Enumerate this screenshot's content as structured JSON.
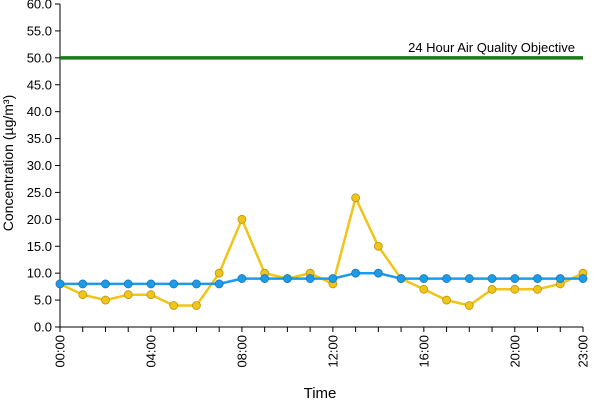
{
  "chart_data": {
    "type": "line",
    "title": "",
    "xlabel": "Time",
    "ylabel": "Concentration (µg/m³)",
    "ylim": [
      0,
      60
    ],
    "yticks": [
      "0.0",
      "5.0",
      "10.0",
      "15.0",
      "20.0",
      "25.0",
      "30.0",
      "35.0",
      "40.0",
      "45.0",
      "50.0",
      "55.0",
      "60.0"
    ],
    "x": [
      "00:00",
      "01:00",
      "02:00",
      "03:00",
      "04:00",
      "05:00",
      "06:00",
      "07:00",
      "08:00",
      "09:00",
      "10:00",
      "11:00",
      "12:00",
      "13:00",
      "14:00",
      "15:00",
      "16:00",
      "17:00",
      "18:00",
      "19:00",
      "20:00",
      "21:00",
      "22:00",
      "23:00"
    ],
    "xtick_labels": [
      "00:00",
      "04:00",
      "08:00",
      "12:00",
      "16:00",
      "20:00",
      "23:00"
    ],
    "grid": false,
    "objective": {
      "value": 50,
      "label": "24 Hour Air Quality Objective",
      "color": "#1a7a1a"
    },
    "series": [
      {
        "color": "#f0c419",
        "values": [
          8,
          6,
          5,
          6,
          6,
          4,
          4,
          10,
          20,
          10,
          9,
          10,
          8,
          24,
          15,
          9,
          7,
          5,
          4,
          7,
          7,
          7,
          8,
          10
        ]
      },
      {
        "color": "#1e9be8",
        "values": [
          8,
          8,
          8,
          8,
          8,
          8,
          8,
          8,
          9,
          9,
          9,
          9,
          9,
          10,
          10,
          9,
          9,
          9,
          9,
          9,
          9,
          9,
          9,
          9
        ]
      }
    ]
  }
}
